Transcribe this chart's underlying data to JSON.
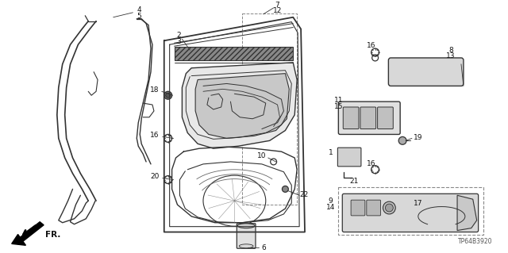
{
  "bg_color": "#ffffff",
  "part_number": "TP64B3920",
  "fig_width": 6.4,
  "fig_height": 3.19,
  "line_color": "#333333",
  "label_color": "#111111"
}
